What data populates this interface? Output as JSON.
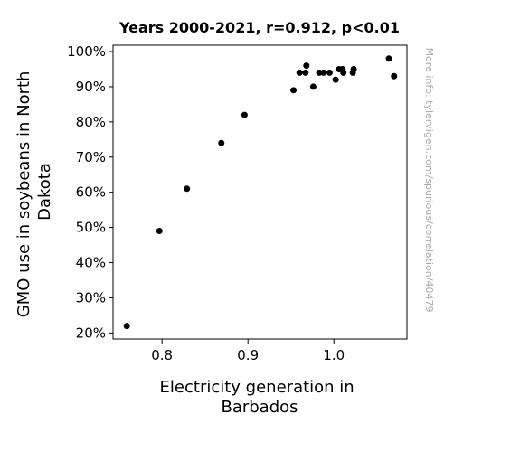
{
  "chart_data": {
    "type": "scatter",
    "title": "Years 2000-2021, r=0.912, p<0.01",
    "xlabel": [
      "Electricity generation in",
      "Barbados"
    ],
    "ylabel": [
      "GMO use in soybeans in North",
      "Dakota"
    ],
    "xlim": [
      0.743,
      1.085
    ],
    "ylim": [
      0.183,
      1.018
    ],
    "xticks": [
      0.8,
      0.9,
      1.0
    ],
    "xtick_labels": [
      "0.8",
      "0.9",
      "1.0"
    ],
    "yticks": [
      0.2,
      0.3,
      0.4,
      0.5,
      0.6,
      0.7,
      0.8,
      0.9,
      1.0
    ],
    "ytick_labels": [
      "20%",
      "30%",
      "40%",
      "50%",
      "60%",
      "70%",
      "80%",
      "90%",
      "100%"
    ],
    "grid": false,
    "marker_color": "#000000",
    "points": [
      {
        "x": 0.759,
        "y": 0.22
      },
      {
        "x": 0.797,
        "y": 0.49
      },
      {
        "x": 0.829,
        "y": 0.61
      },
      {
        "x": 0.869,
        "y": 0.74
      },
      {
        "x": 0.896,
        "y": 0.82
      },
      {
        "x": 0.953,
        "y": 0.89
      },
      {
        "x": 0.96,
        "y": 0.94
      },
      {
        "x": 0.967,
        "y": 0.94
      },
      {
        "x": 0.968,
        "y": 0.96
      },
      {
        "x": 0.976,
        "y": 0.9
      },
      {
        "x": 0.983,
        "y": 0.94
      },
      {
        "x": 0.988,
        "y": 0.94
      },
      {
        "x": 0.995,
        "y": 0.94
      },
      {
        "x": 1.002,
        "y": 0.92
      },
      {
        "x": 1.006,
        "y": 0.95
      },
      {
        "x": 1.01,
        "y": 0.95
      },
      {
        "x": 1.011,
        "y": 0.94
      },
      {
        "x": 1.022,
        "y": 0.94
      },
      {
        "x": 1.023,
        "y": 0.95
      },
      {
        "x": 1.064,
        "y": 0.98
      },
      {
        "x": 1.07,
        "y": 0.93
      }
    ],
    "credit": "More info: tylervigen.com/spurious/correlation/40479"
  }
}
